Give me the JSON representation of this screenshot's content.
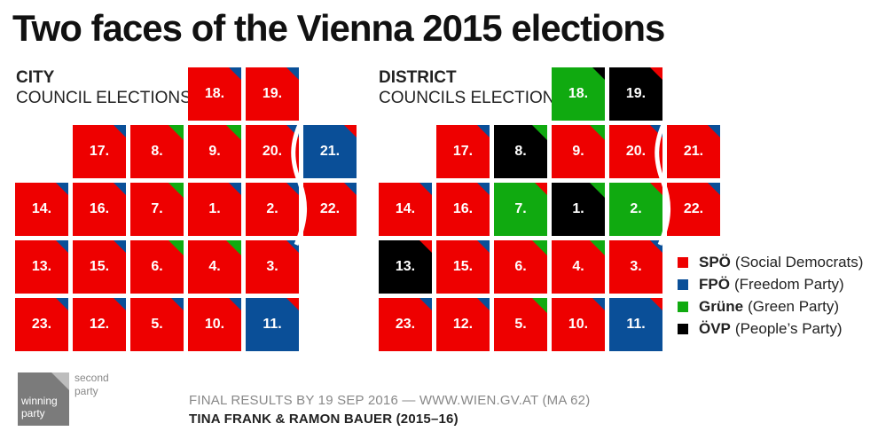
{
  "title": "Two faces of the Vienna 2015 elections",
  "city_label": {
    "line1": "CITY",
    "line2": "COUNCIL ELECTIONS"
  },
  "district_label": {
    "line1": "DISTRICT",
    "line2": "COUNCILS ELECTIONS"
  },
  "colors": {
    "SPO": "#ee0000",
    "FPO": "#0a4f98",
    "GRUENE": "#10aa10",
    "OVP": "#000000"
  },
  "legend": [
    {
      "party": "SPÖ",
      "desc": "(Social Democrats)",
      "key": "SPO"
    },
    {
      "party": "FPÖ",
      "desc": "(Freedom Party)",
      "key": "FPO"
    },
    {
      "party": "Grüne",
      "desc": "(Green Party)",
      "key": "GRUENE"
    },
    {
      "party": "ÖVP",
      "desc": "(People’s Party)",
      "key": "OVP"
    }
  ],
  "city": [
    {
      "label": "18.",
      "winner": "SPO",
      "second": "FPO"
    },
    {
      "label": "19.",
      "winner": "SPO",
      "second": "FPO"
    },
    {
      "label": "17.",
      "winner": "SPO",
      "second": "FPO"
    },
    {
      "label": "8.",
      "winner": "SPO",
      "second": "GRUENE"
    },
    {
      "label": "9.",
      "winner": "SPO",
      "second": "GRUENE"
    },
    {
      "label": "20.",
      "winner": "SPO",
      "second": "FPO"
    },
    {
      "label": "21.",
      "winner": "FPO",
      "second": "SPO"
    },
    {
      "label": "14.",
      "winner": "SPO",
      "second": "FPO"
    },
    {
      "label": "16.",
      "winner": "SPO",
      "second": "FPO"
    },
    {
      "label": "7.",
      "winner": "SPO",
      "second": "GRUENE"
    },
    {
      "label": "1.",
      "winner": "SPO",
      "second": "FPO"
    },
    {
      "label": "2.",
      "winner": "SPO",
      "second": "FPO"
    },
    {
      "label": "22.",
      "winner": "SPO",
      "second": "FPO"
    },
    {
      "label": "13.",
      "winner": "SPO",
      "second": "FPO"
    },
    {
      "label": "15.",
      "winner": "SPO",
      "second": "FPO"
    },
    {
      "label": "6.",
      "winner": "SPO",
      "second": "GRUENE"
    },
    {
      "label": "4.",
      "winner": "SPO",
      "second": "GRUENE"
    },
    {
      "label": "3.",
      "winner": "SPO",
      "second": "FPO"
    },
    {
      "label": "23.",
      "winner": "SPO",
      "second": "FPO"
    },
    {
      "label": "12.",
      "winner": "SPO",
      "second": "FPO"
    },
    {
      "label": "5.",
      "winner": "SPO",
      "second": "FPO"
    },
    {
      "label": "10.",
      "winner": "SPO",
      "second": "FPO"
    },
    {
      "label": "11.",
      "winner": "FPO",
      "second": "SPO"
    }
  ],
  "district": [
    {
      "label": "18.",
      "winner": "GRUENE",
      "second": "OVP"
    },
    {
      "label": "19.",
      "winner": "OVP",
      "second": "SPO"
    },
    {
      "label": "17.",
      "winner": "SPO",
      "second": "FPO"
    },
    {
      "label": "8.",
      "winner": "OVP",
      "second": "GRUENE"
    },
    {
      "label": "9.",
      "winner": "SPO",
      "second": "GRUENE"
    },
    {
      "label": "20.",
      "winner": "SPO",
      "second": "FPO"
    },
    {
      "label": "21.",
      "winner": "SPO",
      "second": "FPO"
    },
    {
      "label": "14.",
      "winner": "SPO",
      "second": "FPO"
    },
    {
      "label": "16.",
      "winner": "SPO",
      "second": "FPO"
    },
    {
      "label": "7.",
      "winner": "GRUENE",
      "second": "SPO"
    },
    {
      "label": "1.",
      "winner": "OVP",
      "second": "GRUENE"
    },
    {
      "label": "2.",
      "winner": "GRUENE",
      "second": "SPO"
    },
    {
      "label": "22.",
      "winner": "SPO",
      "second": "FPO"
    },
    {
      "label": "13.",
      "winner": "OVP",
      "second": "SPO"
    },
    {
      "label": "15.",
      "winner": "SPO",
      "second": "FPO"
    },
    {
      "label": "6.",
      "winner": "SPO",
      "second": "GRUENE"
    },
    {
      "label": "4.",
      "winner": "SPO",
      "second": "GRUENE"
    },
    {
      "label": "3.",
      "winner": "SPO",
      "second": "FPO"
    },
    {
      "label": "23.",
      "winner": "SPO",
      "second": "FPO"
    },
    {
      "label": "12.",
      "winner": "SPO",
      "second": "FPO"
    },
    {
      "label": "5.",
      "winner": "SPO",
      "second": "GRUENE"
    },
    {
      "label": "10.",
      "winner": "SPO",
      "second": "FPO"
    },
    {
      "label": "11.",
      "winner": "FPO",
      "second": "SPO"
    }
  ],
  "footer": {
    "source": "FINAL RESULTS BY 19 SEP 2016 — WWW.WIEN.GV.AT (MA 62)",
    "authors": "TINA FRANK & RAMON BAUER (2015–16)"
  },
  "key": {
    "winning_line1": "winning",
    "winning_line2": "party",
    "second_line1": "second",
    "second_line2": "party"
  }
}
